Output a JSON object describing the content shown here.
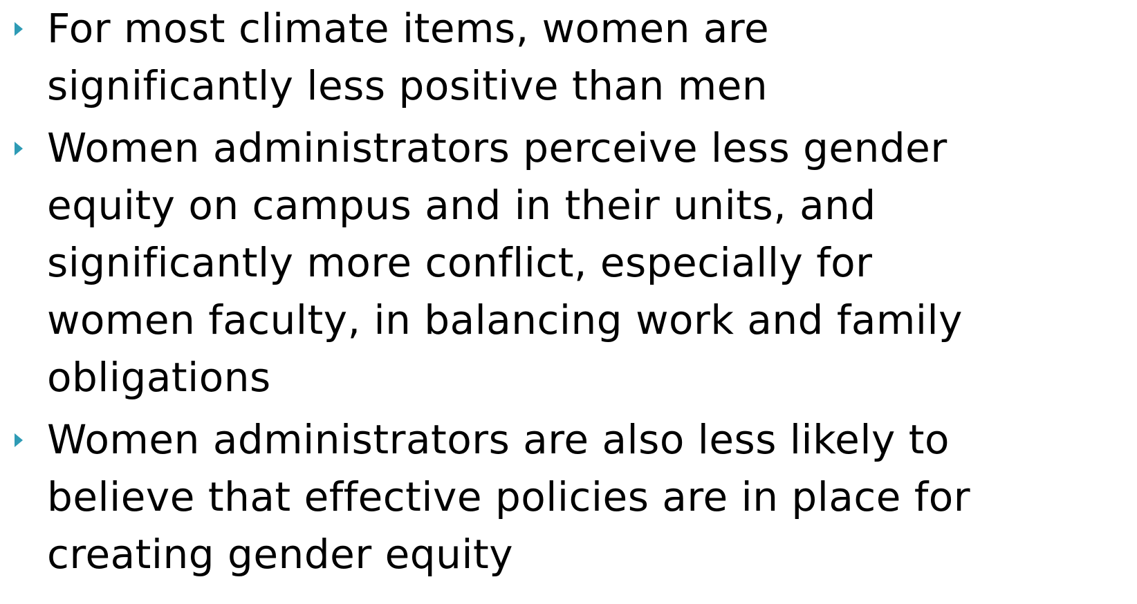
{
  "bullets": [
    {
      "lines": [
        "For most climate items, women are",
        "significantly less positive than men"
      ]
    },
    {
      "lines": [
        "Women administrators perceive less gender",
        "equity on campus and in their units, and",
        "significantly more conflict, especially for",
        "women faculty, in balancing work and family",
        "obligations"
      ]
    },
    {
      "lines": [
        "Women administrators are also less likely to",
        "believe that effective policies are in place for",
        "creating gender equity"
      ]
    }
  ]
}
